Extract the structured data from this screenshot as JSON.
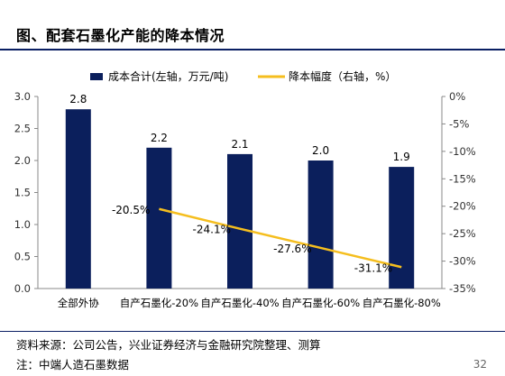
{
  "header": {
    "title": "图、配套石墨化产能的降本情况"
  },
  "footer": {
    "source": "资料来源：公司公告，兴业证券经济与金融研究院整理、测算",
    "note": "注：中端人造石墨数据",
    "page_number": "32"
  },
  "colors": {
    "bar": "#0b1f5c",
    "line": "#f5be1e",
    "rule": "#0a1f63"
  },
  "chart_data": {
    "type": "bar",
    "categories": [
      "全部外协",
      "自产石墨化-20%",
      "自产石墨化-40%",
      "自产石墨化-60%",
      "自产石墨化-80%"
    ],
    "series": [
      {
        "name": "成本合计(左轴，万元/吨)",
        "type": "bar",
        "axis": "left",
        "values": [
          2.8,
          2.2,
          2.1,
          2.0,
          1.9
        ],
        "labels": [
          "2.8",
          "2.2",
          "2.1",
          "2.0",
          "1.9"
        ]
      },
      {
        "name": "降本幅度（右轴，%）",
        "type": "line",
        "axis": "right",
        "values": [
          null,
          -20.5,
          -24.1,
          -27.6,
          -31.1
        ],
        "labels": [
          "",
          "-20.5%",
          "-24.1%",
          "-27.6%",
          "-31.1%"
        ]
      }
    ],
    "ylim_left": [
      0,
      3.0
    ],
    "yticks_left": [
      "0.0",
      "0.5",
      "1.0",
      "1.5",
      "2.0",
      "2.5",
      "3.0"
    ],
    "ylim_right": [
      -35,
      0
    ],
    "yticks_right": [
      "0%",
      "-5%",
      "-10%",
      "-15%",
      "-20%",
      "-25%",
      "-30%",
      "-35%"
    ],
    "grid": false,
    "legend_position": "top"
  }
}
